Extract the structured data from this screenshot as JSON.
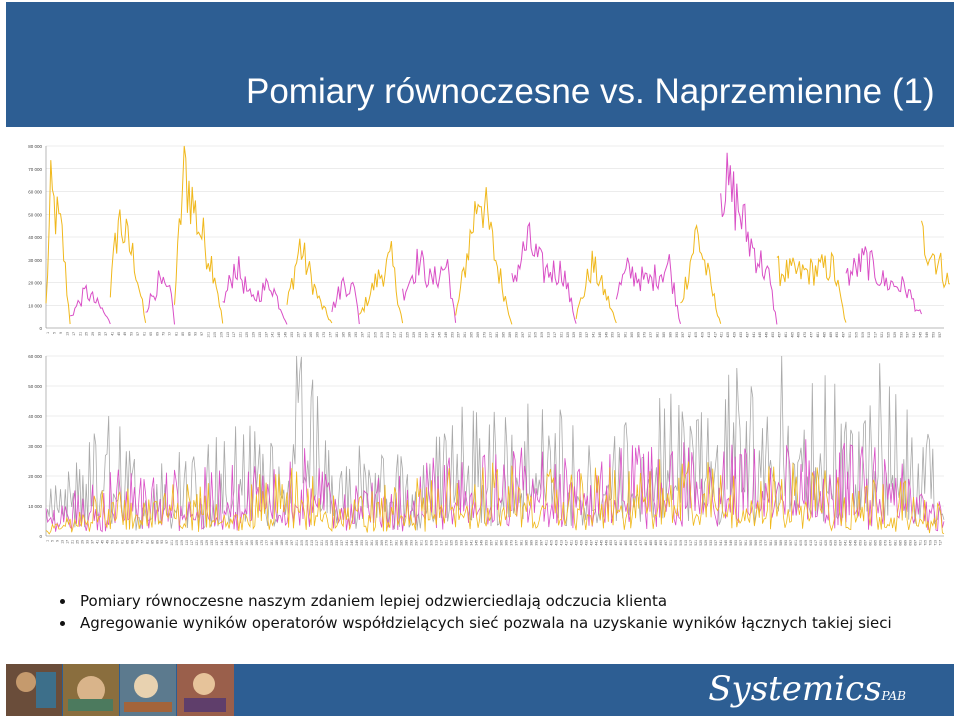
{
  "slide": {
    "title": "Pomiary równoczesne vs. Naprzemienne (1)",
    "bullets": [
      "Pomiary równoczesne naszym zdaniem lepiej odzwierciedlają odczucia klienta",
      "Agregowanie wyników operatorów współdzielących sieć pozwala na uzyskanie wyników łącznych takiej sieci"
    ],
    "brand": "Systemics",
    "brand_suffix": "PAB"
  },
  "colors": {
    "header_bg": "#2d5e93",
    "series_yellow": "#f0b81c",
    "series_magenta": "#d94fc6",
    "series_gray": "#a9a9a9",
    "grid": "#d9d9d9"
  },
  "chart_data": [
    {
      "type": "line",
      "ylim": [
        0,
        80000
      ],
      "yticks": [
        "0",
        "10 000",
        "20 000",
        "30 000",
        "40 000",
        "50 000",
        "60 000",
        "70 000",
        "80 000"
      ],
      "grid": true,
      "points": 560,
      "series": [
        {
          "color": "yellow",
          "segments": [
            [
              0,
              15
            ],
            [
              40,
              62
            ],
            [
              80,
              110
            ],
            [
              150,
              178
            ],
            [
              195,
              222
            ],
            [
              255,
              290
            ],
            [
              330,
              355
            ],
            [
              395,
              420
            ],
            [
              455,
              498
            ],
            [
              545,
              568
            ]
          ],
          "profile": [
            [
              0,
              10000
            ],
            [
              3,
              58000
            ],
            [
              10,
              40000
            ],
            [
              15,
              2000
            ],
            [
              40,
              16000
            ],
            [
              45,
              48000
            ],
            [
              55,
              30000
            ],
            [
              62,
              2000
            ],
            [
              80,
              12000
            ],
            [
              86,
              70000
            ],
            [
              95,
              45000
            ],
            [
              105,
              25000
            ],
            [
              110,
              2000
            ],
            [
              150,
              10000
            ],
            [
              158,
              36000
            ],
            [
              170,
              12000
            ],
            [
              178,
              2000
            ],
            [
              195,
              5000
            ],
            [
              205,
              20000
            ],
            [
              215,
              30000
            ],
            [
              222,
              2000
            ],
            [
              255,
              5000
            ],
            [
              270,
              62000
            ],
            [
              280,
              30000
            ],
            [
              290,
              2000
            ],
            [
              330,
              5000
            ],
            [
              340,
              28000
            ],
            [
              350,
              12000
            ],
            [
              355,
              2000
            ],
            [
              395,
              10000
            ],
            [
              405,
              42000
            ],
            [
              415,
              15000
            ],
            [
              420,
              2000
            ],
            [
              455,
              25000
            ],
            [
              470,
              24000
            ],
            [
              490,
              27000
            ],
            [
              498,
              2000
            ],
            [
              545,
              40000
            ],
            [
              555,
              30000
            ],
            [
              565,
              15000
            ],
            [
              568,
              8000
            ]
          ]
        },
        {
          "color": "magenta",
          "segments": [
            [
              15,
              40
            ],
            [
              62,
              80
            ],
            [
              110,
              150
            ],
            [
              178,
              195
            ],
            [
              222,
              255
            ],
            [
              290,
              330
            ],
            [
              355,
              395
            ],
            [
              420,
              455
            ],
            [
              498,
              545
            ]
          ],
          "profile": [
            [
              15,
              5000
            ],
            [
              25,
              16000
            ],
            [
              35,
              8000
            ],
            [
              40,
              2000
            ],
            [
              62,
              8000
            ],
            [
              70,
              20000
            ],
            [
              78,
              14000
            ],
            [
              80,
              2000
            ],
            [
              110,
              10000
            ],
            [
              118,
              28000
            ],
            [
              128,
              12000
            ],
            [
              140,
              20000
            ],
            [
              150,
              2000
            ],
            [
              178,
              8000
            ],
            [
              185,
              20000
            ],
            [
              193,
              16000
            ],
            [
              195,
              2000
            ],
            [
              222,
              15000
            ],
            [
              232,
              30000
            ],
            [
              240,
              20000
            ],
            [
              250,
              28000
            ],
            [
              255,
              2000
            ],
            [
              290,
              20000
            ],
            [
              300,
              38000
            ],
            [
              310,
              25000
            ],
            [
              322,
              25000
            ],
            [
              330,
              2000
            ],
            [
              355,
              15000
            ],
            [
              362,
              25000
            ],
            [
              375,
              20000
            ],
            [
              388,
              28000
            ],
            [
              395,
              2000
            ],
            [
              420,
              65000
            ],
            [
              430,
              55000
            ],
            [
              438,
              38000
            ],
            [
              450,
              22000
            ],
            [
              455,
              2000
            ],
            [
              498,
              22000
            ],
            [
              510,
              30000
            ],
            [
              522,
              20000
            ],
            [
              535,
              18000
            ],
            [
              545,
              5000
            ]
          ]
        }
      ],
      "x_tick_count": 140
    },
    {
      "type": "line",
      "ylim": [
        0,
        60000
      ],
      "yticks": [
        "0",
        "10 000",
        "20 000",
        "30 000",
        "40 000",
        "50 000",
        "60 000"
      ],
      "grid": true,
      "points": 560,
      "series": [
        {
          "color": "gray",
          "profile": [
            [
              0,
              10000
            ],
            [
              20,
              18000
            ],
            [
              40,
              30000
            ],
            [
              60,
              15000
            ],
            [
              90,
              22000
            ],
            [
              120,
              25000
            ],
            [
              150,
              30000
            ],
            [
              160,
              50000
            ],
            [
              175,
              20000
            ],
            [
              200,
              22000
            ],
            [
              230,
              18000
            ],
            [
              260,
              30000
            ],
            [
              290,
              28000
            ],
            [
              300,
              35000
            ],
            [
              330,
              28000
            ],
            [
              360,
              25000
            ],
            [
              380,
              40000
            ],
            [
              400,
              30000
            ],
            [
              420,
              35000
            ],
            [
              440,
              40000
            ],
            [
              460,
              45000
            ],
            [
              480,
              42000
            ],
            [
              500,
              30000
            ],
            [
              520,
              40000
            ],
            [
              540,
              35000
            ],
            [
              560,
              10000
            ]
          ]
        },
        {
          "color": "magenta",
          "profile": [
            [
              0,
              8000
            ],
            [
              40,
              15000
            ],
            [
              80,
              15000
            ],
            [
              120,
              16000
            ],
            [
              160,
              20000
            ],
            [
              200,
              12000
            ],
            [
              240,
              18000
            ],
            [
              280,
              22000
            ],
            [
              320,
              18000
            ],
            [
              360,
              20000
            ],
            [
              400,
              22000
            ],
            [
              440,
              20000
            ],
            [
              480,
              22000
            ],
            [
              520,
              20000
            ],
            [
              560,
              8000
            ]
          ]
        },
        {
          "color": "yellow",
          "profile": [
            [
              0,
              6000
            ],
            [
              40,
              12000
            ],
            [
              80,
              12000
            ],
            [
              120,
              13000
            ],
            [
              160,
              16000
            ],
            [
              200,
              10000
            ],
            [
              240,
              15000
            ],
            [
              280,
              17000
            ],
            [
              320,
              15000
            ],
            [
              360,
              16000
            ],
            [
              400,
              18000
            ],
            [
              440,
              16000
            ],
            [
              480,
              18000
            ],
            [
              520,
              16000
            ],
            [
              560,
              6000
            ]
          ]
        }
      ],
      "x_tick_count": 180
    }
  ]
}
